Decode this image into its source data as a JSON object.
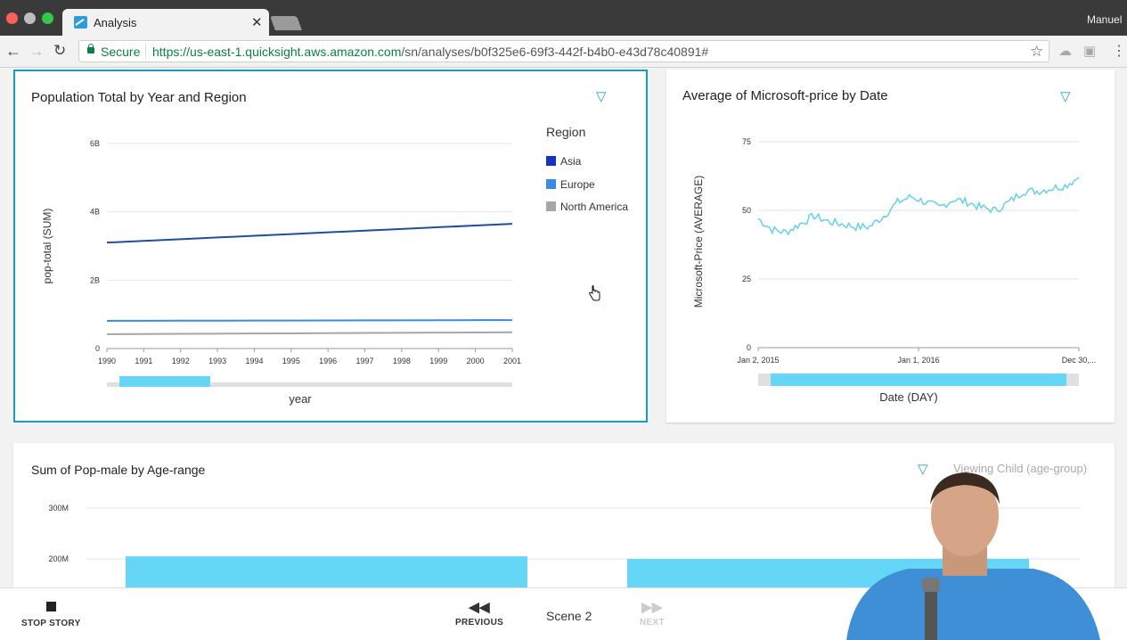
{
  "browser": {
    "tab_title": "Analysis",
    "tab_close": "✕",
    "user": "Manuel",
    "secure_label": "Secure",
    "url_scheme": "https://",
    "url_host": "us-east-1.quicksight.aws.amazon.com",
    "url_path": "/sn/analyses/b0f325e6-69f3-442f-b4b0-e43d78c40891#"
  },
  "colors": {
    "accent": "#1a9bc7",
    "asia": "#1f4e9f",
    "europe": "#3b8be6",
    "north_america": "#a6a6a6",
    "microsoft_line": "#67d0ec",
    "bar": "#66d6f7"
  },
  "panels": {
    "population": {
      "title": "Population Total by Year and Region",
      "legend_title": "Region",
      "legend": [
        "Asia",
        "Europe",
        "North America"
      ]
    },
    "microsoft": {
      "title": "Average of Microsoft-price by Date"
    },
    "pop_male": {
      "title": "Sum of Pop-male by Age-range",
      "viewing_child": "Viewing Child (age-group)"
    }
  },
  "chart_data": [
    {
      "type": "line",
      "title": "Population Total by Year and Region",
      "xlabel": "year",
      "ylabel": "pop-total (SUM)",
      "x": [
        1990,
        1991,
        1992,
        1993,
        1994,
        1995,
        1996,
        1997,
        1998,
        1999,
        2000,
        2001
      ],
      "x_tick_labels": [
        "1990",
        "1991",
        "1992",
        "1993",
        "1994",
        "1995",
        "1996",
        "1997",
        "1998",
        "1999",
        "2000",
        "2001"
      ],
      "y_tick_labels": [
        "0",
        "2B",
        "4B",
        "6B"
      ],
      "ylim": [
        0,
        6000000000
      ],
      "legend_title": "Region",
      "legend_position": "right",
      "grid": true,
      "series": [
        {
          "name": "Asia",
          "values": [
            3100000000,
            3150000000,
            3200000000,
            3250000000,
            3300000000,
            3350000000,
            3400000000,
            3450000000,
            3500000000,
            3550000000,
            3600000000,
            3650000000
          ]
        },
        {
          "name": "Europe",
          "values": [
            810000000,
            812000000,
            814000000,
            816000000,
            818000000,
            820000000,
            822000000,
            824000000,
            826000000,
            828000000,
            830000000,
            832000000
          ]
        },
        {
          "name": "North America",
          "values": [
            420000000,
            425000000,
            430000000,
            435000000,
            440000000,
            445000000,
            450000000,
            455000000,
            460000000,
            465000000,
            470000000,
            475000000
          ]
        }
      ]
    },
    {
      "type": "line",
      "title": "Average of Microsoft-price by Date",
      "xlabel": "Date (DAY)",
      "ylabel": "Microsoft-Price (AVERAGE)",
      "x_tick_labels": [
        "Jan 2, 2015",
        "Jan 1, 2016",
        "Dec 30,..."
      ],
      "y_tick_labels": [
        "0",
        "25",
        "50",
        "75"
      ],
      "ylim": [
        0,
        75
      ],
      "grid": true,
      "series": [
        {
          "name": "Microsoft-price",
          "x": [
            "2015-01",
            "2015-02",
            "2015-03",
            "2015-04",
            "2015-05",
            "2015-06",
            "2015-07",
            "2015-08",
            "2015-09",
            "2015-10",
            "2015-11",
            "2015-12",
            "2016-01",
            "2016-02",
            "2016-03",
            "2016-04",
            "2016-05",
            "2016-06",
            "2016-07",
            "2016-08",
            "2016-09",
            "2016-10",
            "2016-11",
            "2016-12"
          ],
          "values": [
            47,
            43,
            42,
            45,
            48,
            46,
            45,
            44,
            44,
            48,
            53,
            55,
            53,
            51,
            54,
            53,
            51,
            50,
            53,
            57,
            57,
            58,
            59,
            62
          ]
        }
      ]
    },
    {
      "type": "bar",
      "title": "Sum of Pop-male by Age-range",
      "y_tick_labels": [
        "200M",
        "300M"
      ],
      "categories": [
        "",
        ""
      ],
      "values": [
        205000000,
        200000000
      ],
      "grid": true
    }
  ],
  "story": {
    "stop_label": "STOP STORY",
    "previous_label": "PREVIOUS",
    "scene_label": "Scene 2",
    "next_label": "NEXT"
  }
}
